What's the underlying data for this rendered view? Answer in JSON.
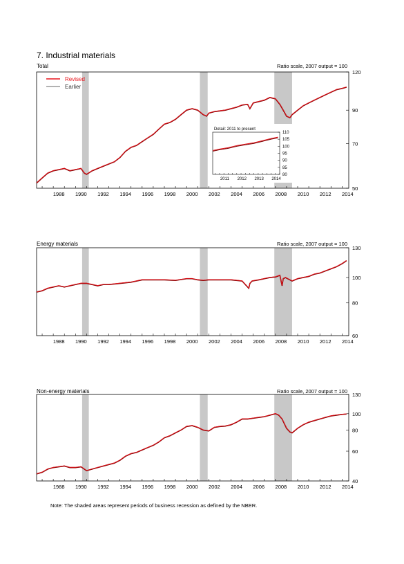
{
  "title": "7. Industrial materials",
  "footnote": "Note: The shaded areas represent periods of business recession as defined by the NBER.",
  "colors": {
    "revised": "#e8131b",
    "earlier": "#999999",
    "recession": "#c8c8c8",
    "earlier_line": "#7a0000"
  },
  "chart_data": [
    {
      "type": "line",
      "panel_title": "Total",
      "scale_note": "Ratio scale, 2007 output = 100",
      "log_scale": true,
      "xlim": [
        1986.5,
        2014.6
      ],
      "ylim": [
        50,
        120
      ],
      "yticks": [
        50,
        70,
        90,
        120
      ],
      "xticks": [
        "1988",
        "1990",
        "1992",
        "1994",
        "1996",
        "1998",
        "2000",
        "2002",
        "2004",
        "2006",
        "2008",
        "2010",
        "2012",
        "2014"
      ],
      "recessions": [
        [
          1990.6,
          1991.2
        ],
        [
          2001.2,
          2001.9
        ],
        [
          2007.9,
          2009.5
        ]
      ],
      "legend": [
        "Revised",
        "Earlier"
      ],
      "series": [
        {
          "name": "Revised",
          "x": [
            1986.5,
            1987.0,
            1987.5,
            1988.0,
            1988.5,
            1989.0,
            1989.5,
            1990.0,
            1990.5,
            1990.8,
            1991.0,
            1991.5,
            1992.0,
            1992.5,
            1993.0,
            1993.5,
            1994.0,
            1994.5,
            1995.0,
            1995.5,
            1996.0,
            1996.5,
            1997.0,
            1997.5,
            1998.0,
            1998.5,
            1999.0,
            1999.5,
            2000.0,
            2000.5,
            2001.0,
            2001.5,
            2001.8,
            2002.0,
            2002.5,
            2003.0,
            2003.5,
            2004.0,
            2004.5,
            2005.0,
            2005.5,
            2005.7,
            2006.0,
            2006.5,
            2007.0,
            2007.5,
            2008.0,
            2008.4,
            2008.7,
            2009.0,
            2009.3,
            2009.5,
            2010.0,
            2010.5,
            2011.0,
            2011.5,
            2012.0,
            2012.5,
            2013.0,
            2013.5,
            2014.0,
            2014.4
          ],
          "y": [
            52,
            54,
            56,
            57,
            57.5,
            58,
            57,
            57.5,
            58,
            56,
            55.5,
            57,
            58,
            59,
            60,
            61,
            63,
            66,
            68,
            69,
            71,
            73,
            75,
            78,
            81,
            82,
            84,
            87,
            90,
            91,
            90,
            87,
            86,
            88,
            89,
            89.5,
            90,
            91,
            92,
            93.5,
            94,
            91,
            95,
            96,
            97,
            99,
            98,
            94,
            90,
            86,
            85,
            87,
            90,
            93,
            95,
            97,
            99,
            101,
            103,
            105,
            106,
            107
          ]
        }
      ],
      "inset": {
        "title": "Detail: 2011 to present",
        "xlim": [
          2010.6,
          2014.5
        ],
        "ylim": [
          80,
          110
        ],
        "yticks": [
          80,
          85,
          90,
          95,
          100,
          105,
          110
        ],
        "xticks": [
          "2011",
          "2012",
          "2013",
          "2014"
        ],
        "series": [
          {
            "name": "Revised",
            "x": [
              2010.6,
              2011.0,
              2011.5,
              2012.0,
              2012.5,
              2013.0,
              2013.5,
              2014.0,
              2014.4
            ],
            "y": [
              97,
              98,
              99,
              100.5,
              101.5,
              102.5,
              104,
              105.5,
              106.5
            ]
          },
          {
            "name": "Earlier",
            "x": [
              2010.6,
              2011.0,
              2011.5,
              2012.0,
              2012.5,
              2013.0,
              2013.5,
              2014.0,
              2014.4
            ],
            "y": [
              96.5,
              97.5,
              98.5,
              100,
              101,
              102,
              103.5,
              105,
              106
            ]
          }
        ]
      }
    },
    {
      "type": "line",
      "panel_title": "Energy materials",
      "scale_note": "Ratio scale, 2007 output = 100",
      "log_scale": true,
      "xlim": [
        1986.5,
        2014.6
      ],
      "ylim": [
        60,
        130
      ],
      "yticks": [
        60,
        80,
        100,
        130
      ],
      "xticks": [
        "1988",
        "1990",
        "1992",
        "1994",
        "1996",
        "1998",
        "2000",
        "2002",
        "2004",
        "2006",
        "2008",
        "2010",
        "2012",
        "2014"
      ],
      "recessions": [
        [
          1990.6,
          1991.2
        ],
        [
          2001.2,
          2001.9
        ],
        [
          2007.9,
          2009.5
        ]
      ],
      "series": [
        {
          "name": "Revised",
          "x": [
            1986.5,
            1987.0,
            1987.5,
            1988.0,
            1988.5,
            1989.0,
            1989.5,
            1990.0,
            1990.5,
            1991.0,
            1991.5,
            1992.0,
            1992.5,
            1993.0,
            1994.0,
            1995.0,
            1996.0,
            1997.0,
            1998.0,
            1999.0,
            2000.0,
            2000.5,
            2001.0,
            2001.5,
            2002.0,
            2003.0,
            2004.0,
            2005.0,
            2005.6,
            2005.7,
            2005.9,
            2006.5,
            2007.0,
            2007.5,
            2008.0,
            2008.4,
            2008.6,
            2008.7,
            2008.9,
            2009.3,
            2009.5,
            2010.0,
            2010.5,
            2011.0,
            2011.5,
            2012.0,
            2012.5,
            2013.0,
            2013.5,
            2014.0,
            2014.4
          ],
          "y": [
            88,
            89,
            91,
            92,
            93,
            92,
            93,
            94,
            95,
            95,
            94,
            93,
            94,
            94,
            95,
            96,
            98,
            98,
            98,
            97.5,
            99,
            99,
            98,
            97.5,
            98,
            98,
            98,
            97,
            91,
            95,
            97,
            98,
            99,
            100,
            100.5,
            102,
            93,
            99,
            100,
            98,
            97,
            99,
            100,
            101,
            103,
            104,
            106,
            108,
            110,
            113,
            116
          ]
        }
      ]
    },
    {
      "type": "line",
      "panel_title": "Non-energy materials",
      "scale_note": "Ratio scale, 2007 output = 100",
      "log_scale": true,
      "xlim": [
        1986.5,
        2014.6
      ],
      "ylim": [
        40,
        130
      ],
      "yticks": [
        40,
        60,
        80,
        100,
        130
      ],
      "xticks": [
        "1988",
        "1990",
        "1992",
        "1994",
        "1996",
        "1998",
        "2000",
        "2002",
        "2004",
        "2006",
        "2008",
        "2010",
        "2012",
        "2014"
      ],
      "recessions": [
        [
          1990.6,
          1991.2
        ],
        [
          2001.2,
          2001.9
        ],
        [
          2007.9,
          2009.5
        ]
      ],
      "series": [
        {
          "name": "Revised",
          "x": [
            1986.5,
            1987.0,
            1987.5,
            1988.0,
            1988.5,
            1989.0,
            1989.5,
            1990.0,
            1990.5,
            1991.0,
            1991.5,
            1992.0,
            1992.5,
            1993.0,
            1993.5,
            1994.0,
            1994.5,
            1995.0,
            1995.5,
            1996.0,
            1996.5,
            1997.0,
            1997.5,
            1998.0,
            1998.5,
            1999.0,
            1999.5,
            2000.0,
            2000.5,
            2001.0,
            2001.5,
            2002.0,
            2002.5,
            2003.0,
            2003.5,
            2004.0,
            2004.5,
            2005.0,
            2005.5,
            2006.0,
            2006.5,
            2007.0,
            2007.5,
            2008.0,
            2008.3,
            2008.6,
            2009.0,
            2009.3,
            2009.5,
            2010.0,
            2010.5,
            2011.0,
            2011.5,
            2012.0,
            2012.5,
            2013.0,
            2013.5,
            2014.0,
            2014.4
          ],
          "y": [
            44,
            45,
            47,
            48,
            48.5,
            49,
            48,
            48,
            48.5,
            46,
            47,
            48,
            49,
            50,
            51,
            53,
            56,
            58,
            59,
            61,
            63,
            65,
            68,
            72,
            74,
            77,
            80,
            84,
            85,
            83,
            80,
            79,
            83,
            84,
            84.5,
            86,
            89,
            93,
            93,
            94,
            95,
            96,
            98,
            100,
            98,
            93,
            82,
            78,
            77,
            82,
            86,
            89,
            91,
            93,
            95,
            97,
            98,
            99,
            99.5
          ]
        }
      ]
    }
  ]
}
